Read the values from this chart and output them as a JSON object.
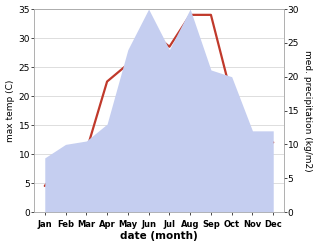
{
  "months": [
    "Jan",
    "Feb",
    "Mar",
    "Apr",
    "May",
    "Jun",
    "Jul",
    "Aug",
    "Sep",
    "Oct",
    "Nov",
    "Dec"
  ],
  "temperature": [
    4.5,
    9.0,
    10.5,
    22.5,
    25.5,
    31.5,
    28.5,
    34.0,
    34.0,
    20.0,
    12.5,
    12.0
  ],
  "precipitation": [
    8.0,
    10.0,
    10.5,
    13.0,
    24.0,
    30.0,
    24.0,
    30.0,
    21.0,
    20.0,
    12.0,
    12.0
  ],
  "temp_color": "#c0392b",
  "precip_fill_color": "#c5cef0",
  "temp_ylim": [
    0,
    35
  ],
  "precip_ylim": [
    0,
    30
  ],
  "temp_yticks": [
    0,
    5,
    10,
    15,
    20,
    25,
    30,
    35
  ],
  "precip_yticks": [
    0,
    5,
    10,
    15,
    20,
    25,
    30
  ],
  "xlabel": "date (month)",
  "ylabel_left": "max temp (C)",
  "ylabel_right": "med. precipitation (kg/m2)",
  "bg_color": "#ffffff",
  "grid_color": "#d0d0d0",
  "figsize": [
    3.18,
    2.47
  ],
  "dpi": 100
}
